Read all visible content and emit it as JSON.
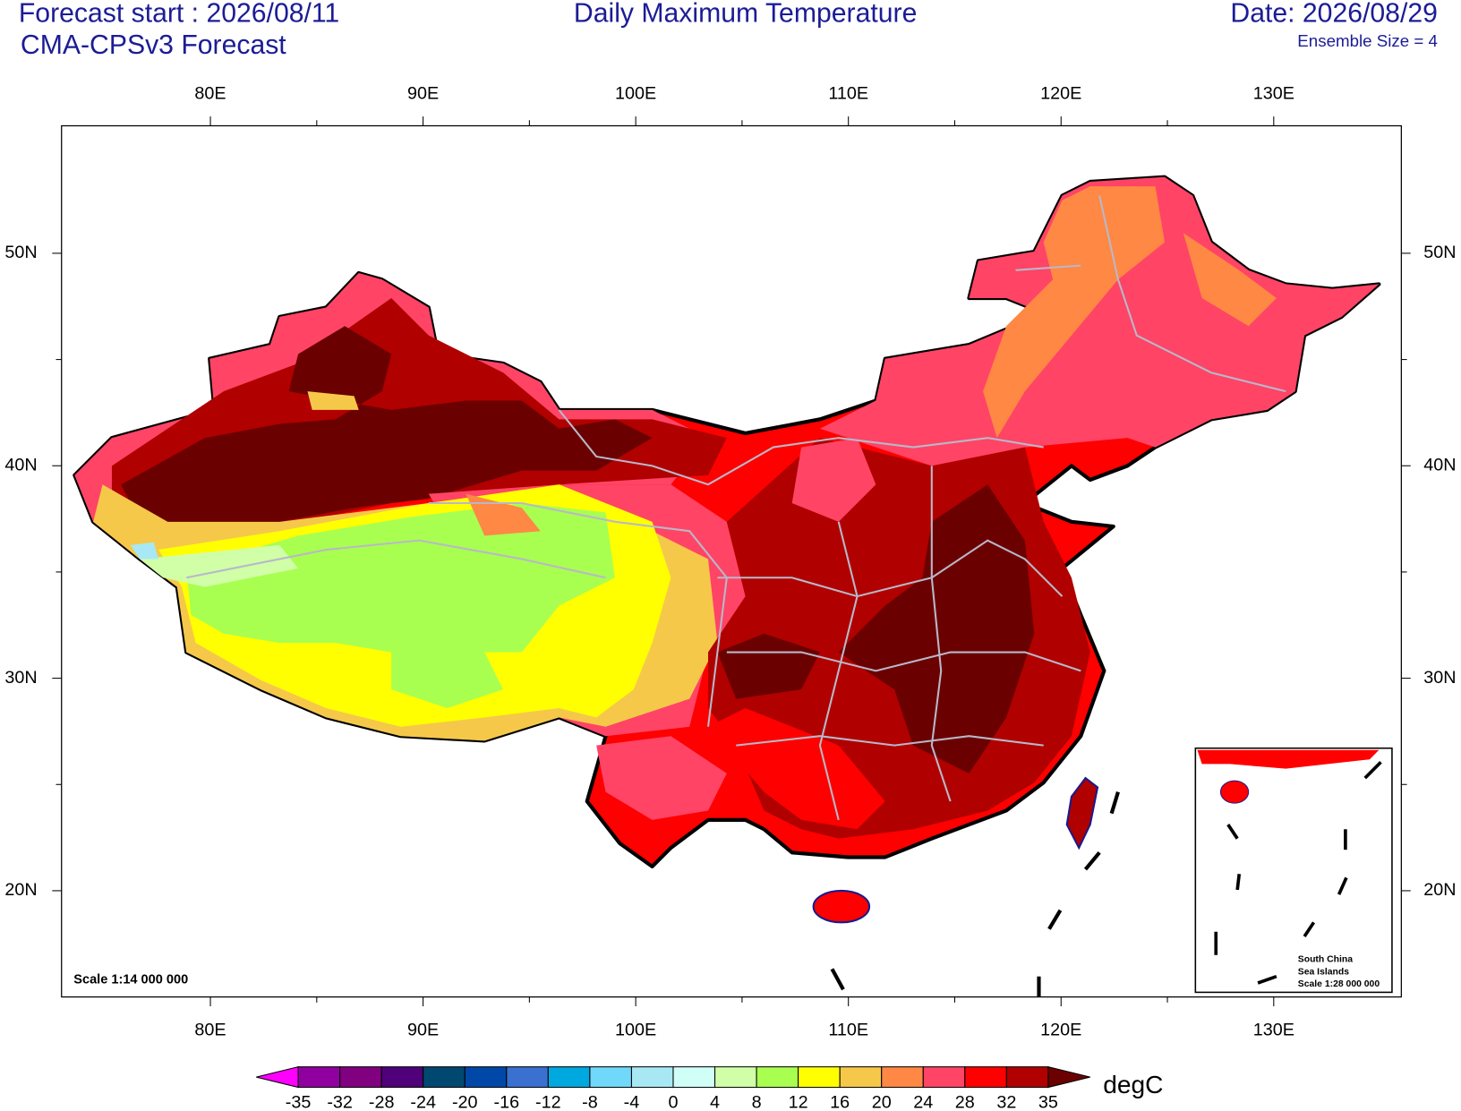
{
  "header": {
    "forecast_start": "Forecast start : 2026/08/11",
    "model": "CMA-CPSv3 Forecast",
    "title": "Daily Maximum Temperature",
    "date": "Date: 2026/08/29",
    "ensemble": "Ensemble Size = 4"
  },
  "map": {
    "lonlim": [
      73,
      136
    ],
    "latlim": [
      15,
      56
    ],
    "lon_ticks": [
      {
        "value": 80,
        "label": "80E"
      },
      {
        "value": 90,
        "label": "90E"
      },
      {
        "value": 100,
        "label": "100E"
      },
      {
        "value": 110,
        "label": "110E"
      },
      {
        "value": 120,
        "label": "120E"
      },
      {
        "value": 130,
        "label": "130E"
      }
    ],
    "lat_ticks": [
      {
        "value": 50,
        "label": "50N"
      },
      {
        "value": 40,
        "label": "40N"
      },
      {
        "value": 30,
        "label": "30N"
      },
      {
        "value": 20,
        "label": "20N"
      }
    ]
  },
  "scale_note": "Scale 1:14 000 000",
  "inset": {
    "name_line1": "South China",
    "name_line2": "Sea Islands",
    "scale": "Scale 1:28 000 000"
  },
  "colorbar": {
    "unit": "degC",
    "levels": [
      -35,
      -32,
      -28,
      -24,
      -20,
      -16,
      -12,
      -8,
      -4,
      0,
      4,
      8,
      12,
      16,
      20,
      24,
      28,
      32,
      35
    ],
    "colors": [
      "#ff00ff",
      "#9000a0",
      "#800080",
      "#500078",
      "#004870",
      "#0048a8",
      "#3a70d0",
      "#00a8e0",
      "#70d8f8",
      "#a8e8f5",
      "#d0fff8",
      "#d0ffa8",
      "#a8ff50",
      "#ffff00",
      "#f5c84a",
      "#ff8844",
      "#ff4466",
      "#ff0000",
      "#b00000",
      "#6b0000"
    ]
  }
}
